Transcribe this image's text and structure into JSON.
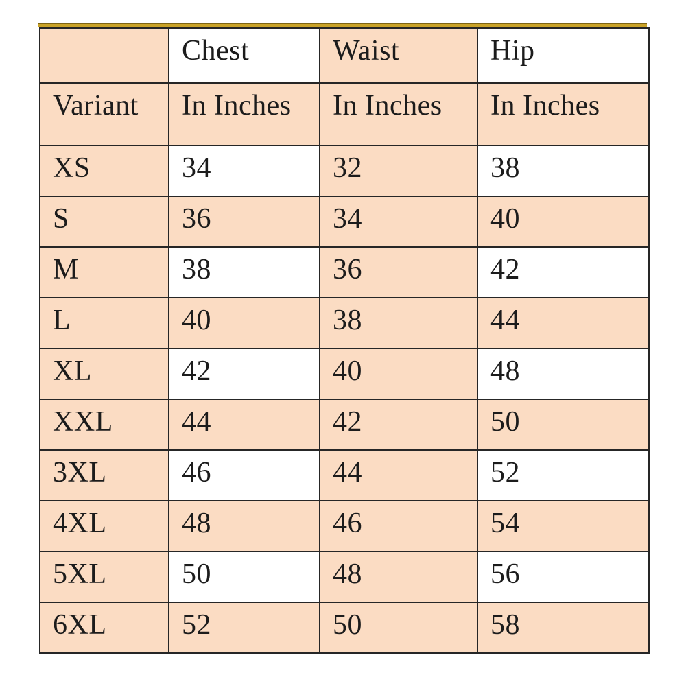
{
  "page": {
    "background_color": "#FFFFFF"
  },
  "accent": {
    "gold_line_color": "#C9A227"
  },
  "table": {
    "title": "size-chart",
    "colors": {
      "peach_cell": "#FBDCC3",
      "white_cell": "#FFFFFF",
      "border": "#262626",
      "text": "#1C1C1C"
    },
    "header": {
      "measurements": [
        "",
        "Chest",
        "Waist",
        "Hip"
      ],
      "units_row": {
        "label": "Variant",
        "units": [
          "In Inches",
          "In Inches",
          "In Inches"
        ]
      }
    },
    "rows": [
      {
        "variant": "XS",
        "chest": "34",
        "waist": "32",
        "hip": "38"
      },
      {
        "variant": "S",
        "chest": "36",
        "waist": "34",
        "hip": "40"
      },
      {
        "variant": "M",
        "chest": "38",
        "waist": "36",
        "hip": "42"
      },
      {
        "variant": "L",
        "chest": "40",
        "waist": "38",
        "hip": "44"
      },
      {
        "variant": "XL",
        "chest": "42",
        "waist": "40",
        "hip": "48"
      },
      {
        "variant": "XXL",
        "chest": "44",
        "waist": "42",
        "hip": "50"
      },
      {
        "variant": "3XL",
        "chest": "46",
        "waist": "44",
        "hip": "52"
      },
      {
        "variant": "4XL",
        "chest": "48",
        "waist": "46",
        "hip": "54"
      },
      {
        "variant": "5XL",
        "chest": "50",
        "waist": "48",
        "hip": "56"
      },
      {
        "variant": "6XL",
        "chest": "52",
        "waist": "50",
        "hip": "58"
      }
    ]
  }
}
